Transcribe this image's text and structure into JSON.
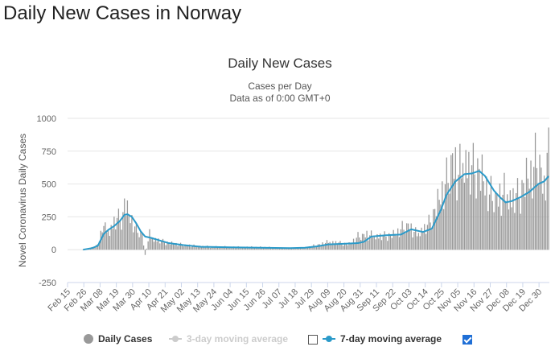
{
  "page": {
    "heading": "Daily New Cases in Norway"
  },
  "chart_data": {
    "type": "bar",
    "title": "Daily New Cases",
    "subtitle_line1": "Cases per Day",
    "subtitle_line2": "Data as of 0:00 GMT+0",
    "ylabel": "Novel Coronavirus Daily Cases",
    "ylim": [
      -250,
      1000
    ],
    "yticks": [
      1000,
      750,
      500,
      250,
      0,
      -250
    ],
    "x_tick_labels": [
      "Feb 15",
      "Feb 26",
      "Mar 08",
      "Mar 19",
      "Mar 30",
      "Apr 10",
      "Apr 21",
      "May 02",
      "May 13",
      "May 24",
      "Jun 04",
      "Jun 15",
      "Jun 26",
      "Jul 07",
      "Jul 18",
      "Jul 29",
      "Aug 09",
      "Aug 20",
      "Aug 31",
      "Sep 11",
      "Sep 22",
      "Oct 03",
      "Oct 14",
      "Oct 25",
      "Nov 05",
      "Nov 16",
      "Nov 27",
      "Dec 08",
      "Dec 19",
      "Dec 30"
    ],
    "x_tick_interval_days": 11,
    "first_day": "Feb 15",
    "last_day": "Jan 04",
    "grid": true,
    "bar_anchors": [
      [
        0,
        0
      ],
      [
        10,
        0
      ],
      [
        13,
        5
      ],
      [
        16,
        15
      ],
      [
        20,
        40
      ],
      [
        22,
        120
      ],
      [
        23,
        220
      ],
      [
        25,
        160
      ],
      [
        28,
        140
      ],
      [
        31,
        210
      ],
      [
        34,
        240
      ],
      [
        37,
        260
      ],
      [
        38,
        390
      ],
      [
        40,
        300
      ],
      [
        43,
        230
      ],
      [
        46,
        150
      ],
      [
        50,
        120
      ],
      [
        52,
        -40
      ],
      [
        55,
        120
      ],
      [
        58,
        80
      ],
      [
        65,
        60
      ],
      [
        75,
        40
      ],
      [
        90,
        25
      ],
      [
        110,
        20
      ],
      [
        130,
        20
      ],
      [
        150,
        10
      ],
      [
        160,
        15
      ],
      [
        170,
        40
      ],
      [
        176,
        60
      ],
      [
        185,
        50
      ],
      [
        190,
        45
      ],
      [
        196,
        100
      ],
      [
        202,
        120
      ],
      [
        210,
        100
      ],
      [
        220,
        120
      ],
      [
        230,
        190
      ],
      [
        236,
        120
      ],
      [
        243,
        180
      ],
      [
        247,
        280
      ],
      [
        252,
        430
      ],
      [
        256,
        520
      ],
      [
        260,
        700
      ],
      [
        264,
        600
      ],
      [
        268,
        680
      ],
      [
        272,
        600
      ],
      [
        276,
        650
      ],
      [
        280,
        580
      ],
      [
        285,
        420
      ],
      [
        290,
        400
      ],
      [
        295,
        450
      ],
      [
        300,
        380
      ],
      [
        305,
        430
      ],
      [
        310,
        560
      ],
      [
        314,
        600
      ],
      [
        318,
        720
      ],
      [
        322,
        470
      ],
      [
        325,
        930
      ]
    ],
    "bar_jitter": [
      0.85,
      1.2,
      0.7,
      1.05,
      1.3,
      0.9,
      0.6,
      1.1,
      1.0,
      0.75,
      1.25,
      0.95,
      0.8,
      1.15,
      0.65,
      1.0,
      1.35,
      0.9,
      0.7,
      1.1,
      1.05,
      0.8,
      1.2,
      0.6,
      0.95,
      1.3,
      0.85,
      1.0,
      0.75,
      1.15
    ],
    "series": [
      {
        "name": "7-day moving average",
        "color": "#2b9ac9",
        "points": [
          [
            10,
            0
          ],
          [
            16,
            12
          ],
          [
            20,
            30
          ],
          [
            24,
            120
          ],
          [
            27,
            150
          ],
          [
            31,
            180
          ],
          [
            35,
            220
          ],
          [
            38,
            265
          ],
          [
            40,
            270
          ],
          [
            43,
            250
          ],
          [
            46,
            200
          ],
          [
            49,
            140
          ],
          [
            52,
            100
          ],
          [
            56,
            90
          ],
          [
            62,
            70
          ],
          [
            68,
            50
          ],
          [
            78,
            35
          ],
          [
            90,
            22
          ],
          [
            110,
            18
          ],
          [
            130,
            15
          ],
          [
            150,
            12
          ],
          [
            160,
            15
          ],
          [
            168,
            25
          ],
          [
            176,
            40
          ],
          [
            186,
            45
          ],
          [
            196,
            50
          ],
          [
            200,
            60
          ],
          [
            205,
            100
          ],
          [
            215,
            110
          ],
          [
            225,
            115
          ],
          [
            232,
            155
          ],
          [
            240,
            135
          ],
          [
            246,
            160
          ],
          [
            252,
            300
          ],
          [
            256,
            420
          ],
          [
            262,
            520
          ],
          [
            268,
            575
          ],
          [
            273,
            580
          ],
          [
            278,
            600
          ],
          [
            282,
            560
          ],
          [
            288,
            450
          ],
          [
            292,
            400
          ],
          [
            296,
            360
          ],
          [
            300,
            370
          ],
          [
            306,
            400
          ],
          [
            312,
            440
          ],
          [
            318,
            500
          ],
          [
            322,
            520
          ],
          [
            325,
            560
          ]
        ]
      }
    ],
    "legend": [
      {
        "name": "Daily Cases",
        "color": "#999999",
        "enabled": true
      },
      {
        "name": "3-day moving average",
        "color": "#cccccc",
        "enabled": false,
        "checked": false
      },
      {
        "name": "7-day moving average",
        "color": "#2b9ac9",
        "enabled": true,
        "checked": true
      }
    ]
  }
}
